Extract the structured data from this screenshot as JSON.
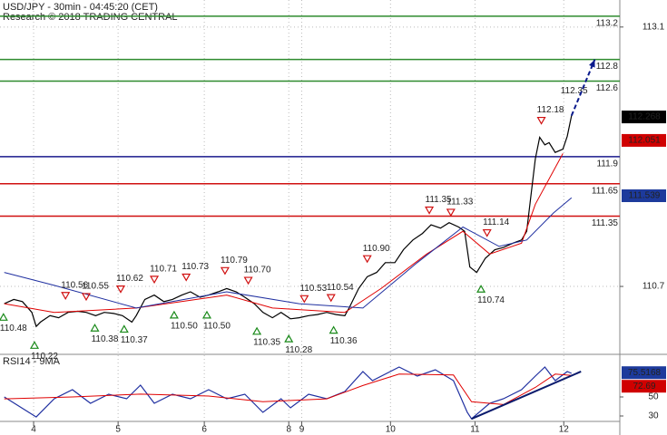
{
  "chart_data": [
    {
      "type": "line",
      "title": "USD/JPY - 30min - 04:45:20 (CET)",
      "subtitle": "Research © 2018 TRADING CENTRAL",
      "xlim": [
        -0.39,
        6.8
      ],
      "ylim": [
        110.08,
        113.35
      ],
      "yticks": [
        110.7,
        113.1
      ],
      "grid": true,
      "series": [
        {
          "color": "#000000",
          "x": [
            -0.34,
            -0.23,
            -0.13,
            -0.02,
            0.03,
            0.08,
            0.19,
            0.29,
            0.4,
            0.51,
            0.61,
            0.72,
            0.82,
            0.93,
            1.03,
            1.14,
            1.19,
            1.29,
            1.4,
            1.51,
            1.61,
            1.72,
            1.82,
            1.93,
            2.03,
            2.14,
            2.24,
            2.35,
            2.45,
            2.56,
            2.66,
            2.77,
            2.87,
            2.98,
            3.08,
            3.19,
            3.29,
            3.4,
            3.51,
            3.61,
            3.66,
            3.77,
            3.87,
            3.98,
            4.08,
            4.19,
            4.29,
            4.4,
            4.51,
            4.61,
            4.72,
            4.82,
            4.93,
            5.0,
            5.06,
            5.14,
            5.24,
            5.35,
            5.45,
            5.56,
            5.66,
            5.72,
            5.77,
            5.82,
            5.87,
            5.93,
            5.98,
            6.05,
            6.14,
            6.19,
            6.24
          ],
          "values": [
            110.54,
            110.58,
            110.56,
            110.46,
            110.33,
            110.37,
            110.43,
            110.41,
            110.46,
            110.47,
            110.46,
            110.43,
            110.46,
            110.45,
            110.43,
            110.37,
            110.43,
            110.58,
            110.62,
            110.56,
            110.58,
            110.62,
            110.65,
            110.6,
            110.62,
            110.65,
            110.68,
            110.65,
            110.6,
            110.54,
            110.46,
            110.41,
            110.46,
            110.4,
            110.41,
            110.43,
            110.44,
            110.46,
            110.44,
            110.43,
            110.5,
            110.68,
            110.79,
            110.83,
            110.92,
            110.92,
            111.04,
            111.13,
            111.19,
            111.27,
            111.24,
            111.29,
            111.25,
            111.21,
            110.88,
            110.83,
            110.96,
            111.04,
            111.06,
            111.1,
            111.13,
            111.21,
            111.55,
            111.88,
            112.08,
            112.01,
            112.03,
            111.94,
            111.97,
            112.09,
            112.28
          ]
        },
        {
          "color": "#e00000",
          "x": [
            -0.34,
            0.24,
            1.19,
            2.24,
            2.77,
            3.61,
            4.03,
            4.56,
            4.98,
            5.29,
            5.66,
            5.82,
            6.14
          ],
          "values": [
            110.54,
            110.46,
            110.5,
            110.62,
            110.5,
            110.46,
            110.68,
            111.0,
            111.21,
            111.0,
            111.1,
            111.46,
            111.93
          ]
        },
        {
          "color": "#1f2fa0",
          "x": [
            -0.34,
            0.24,
            1.19,
            2.24,
            3.08,
            3.82,
            4.45,
            4.98,
            5.4,
            5.72,
            6.03,
            6.24
          ],
          "values": [
            110.83,
            110.71,
            110.5,
            110.65,
            110.54,
            110.5,
            110.92,
            111.25,
            111.07,
            111.13,
            111.38,
            111.52
          ]
        }
      ],
      "levels": [
        {
          "value": 113.2,
          "color": "#2e8b2e"
        },
        {
          "value": 112.8,
          "color": "#2e8b2e"
        },
        {
          "value": 112.6,
          "color": "#2e8b2e"
        },
        {
          "value": 111.9,
          "color": "#1a1a8c"
        },
        {
          "value": 111.65,
          "color": "#d01010"
        },
        {
          "value": 111.35,
          "color": "#d01010"
        }
      ],
      "annotations": [
        {
          "x": -0.35,
          "value": 110.48,
          "label": "110.48",
          "kind": "low"
        },
        {
          "x": 0.01,
          "value": 110.22,
          "label": "110.22",
          "kind": "low"
        },
        {
          "x": 0.37,
          "value": 110.56,
          "label": "110.56",
          "kind": "high"
        },
        {
          "x": 0.61,
          "value": 110.55,
          "label": "110.55",
          "kind": "high"
        },
        {
          "x": 0.71,
          "value": 110.38,
          "label": "110.38",
          "kind": "low"
        },
        {
          "x": 1.01,
          "value": 110.62,
          "label": "110.62",
          "kind": "high"
        },
        {
          "x": 1.05,
          "value": 110.37,
          "label": "110.37",
          "kind": "low"
        },
        {
          "x": 1.4,
          "value": 110.71,
          "label": "110.71",
          "kind": "high"
        },
        {
          "x": 1.63,
          "value": 110.5,
          "label": "110.50",
          "kind": "low"
        },
        {
          "x": 1.77,
          "value": 110.73,
          "label": "110.73",
          "kind": "high"
        },
        {
          "x": 2.01,
          "value": 110.5,
          "label": "110.50",
          "kind": "low"
        },
        {
          "x": 2.22,
          "value": 110.79,
          "label": "110.79",
          "kind": "high"
        },
        {
          "x": 2.49,
          "value": 110.7,
          "label": "110.70",
          "kind": "high"
        },
        {
          "x": 2.59,
          "value": 110.35,
          "label": "110.35",
          "kind": "low"
        },
        {
          "x": 2.96,
          "value": 110.28,
          "label": "110.28",
          "kind": "low"
        },
        {
          "x": 3.14,
          "value": 110.53,
          "label": "110.53",
          "kind": "high"
        },
        {
          "x": 3.45,
          "value": 110.54,
          "label": "110.54",
          "kind": "high"
        },
        {
          "x": 3.48,
          "value": 110.36,
          "label": "110.36",
          "kind": "low"
        },
        {
          "x": 3.87,
          "value": 110.9,
          "label": "110.90",
          "kind": "high"
        },
        {
          "x": 4.59,
          "value": 111.35,
          "label": "111.35",
          "kind": "high"
        },
        {
          "x": 4.84,
          "value": 111.33,
          "label": "111.33",
          "kind": "high"
        },
        {
          "x": 5.26,
          "value": 111.14,
          "label": "111.14",
          "kind": "high"
        },
        {
          "x": 5.19,
          "value": 110.74,
          "label": "110.74",
          "kind": "low"
        },
        {
          "x": 5.89,
          "value": 112.18,
          "label": "112.18",
          "kind": "high"
        }
      ],
      "target": {
        "x": 6.27,
        "value": 112.35
      },
      "projection": {
        "color": "#0a1a8c",
        "x": [
          6.24,
          6.51
        ],
        "values": [
          112.28,
          112.8
        ]
      },
      "badges": [
        {
          "value": 112.268,
          "color": "#000000"
        },
        {
          "value": 112.051,
          "color": "#d00000"
        },
        {
          "value": 111.539,
          "color": "#1d3a9c"
        }
      ]
    },
    {
      "type": "line",
      "title": "RSI14 - 9MA",
      "xlim": [
        -0.39,
        6.8
      ],
      "ylim": [
        24.3,
        93.8
      ],
      "yticks": [
        30,
        50
      ],
      "xticks": [
        {
          "value": 0,
          "label": "4"
        },
        {
          "value": 0.98,
          "label": "5"
        },
        {
          "value": 1.98,
          "label": "6"
        },
        {
          "value": 2.96,
          "label": "8"
        },
        {
          "value": 3.11,
          "label": "9"
        },
        {
          "value": 4.14,
          "label": "10"
        },
        {
          "value": 5.12,
          "label": "11"
        },
        {
          "value": 6.15,
          "label": "12"
        }
      ],
      "series": [
        {
          "color": "#1f2fa0",
          "x": [
            -0.34,
            0.03,
            0.24,
            0.45,
            0.66,
            0.87,
            1.08,
            1.24,
            1.4,
            1.61,
            1.82,
            2.03,
            2.24,
            2.45,
            2.66,
            2.87,
            2.98,
            3.19,
            3.4,
            3.61,
            3.82,
            3.93,
            4.24,
            4.45,
            4.66,
            4.87,
            5.03,
            5.08,
            5.29,
            5.45,
            5.66,
            5.82,
            5.93,
            6.05,
            6.19,
            6.24
          ],
          "values": [
            50,
            29.0,
            48.1,
            57.6,
            43.3,
            52.9,
            48.1,
            62.4,
            43.3,
            52.9,
            48.1,
            57.6,
            48.1,
            52.9,
            33.8,
            48.1,
            38.6,
            52.9,
            48.1,
            55.7,
            76.7,
            67.1,
            81.4,
            71.9,
            78.6,
            67.1,
            33.8,
            27.1,
            43.3,
            48.1,
            57.6,
            71.9,
            81.4,
            67.1,
            76.7,
            74.8
          ]
        },
        {
          "color": "#e00000",
          "x": [
            -0.34,
            0.45,
            1.24,
            2.03,
            2.66,
            3.4,
            3.82,
            4.24,
            4.87,
            5.08,
            5.45,
            5.82,
            6.05,
            6.24
          ],
          "values": [
            48,
            50,
            53,
            51,
            45,
            48,
            62,
            74,
            73,
            45,
            42,
            60,
            74,
            72.69
          ]
        }
      ],
      "trendline": {
        "color": "#0a1a6c",
        "x": [
          5.08,
          6.35
        ],
        "values": [
          27,
          76.7
        ]
      },
      "badges": [
        {
          "value": 75.5168,
          "color": "#1d3a9c"
        },
        {
          "value": 72.69,
          "color": "#d00000"
        }
      ]
    }
  ]
}
